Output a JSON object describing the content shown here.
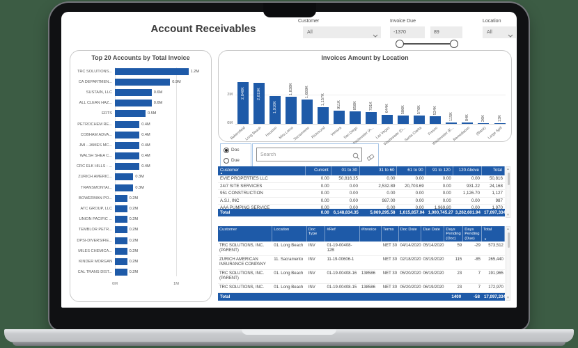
{
  "colors": {
    "page_background": "#3C5C44",
    "accent": "#1E5AA8",
    "slicer_border": "#A9C7E8"
  },
  "title": "Account Receivables",
  "filters": {
    "customer": {
      "label": "Customer",
      "value": "All"
    },
    "invoice_due": {
      "label": "Invoice Due",
      "min": "-1370",
      "max": "89"
    },
    "location": {
      "label": "Location",
      "value": "All"
    }
  },
  "slicer": {
    "options": [
      "Doc",
      "Due"
    ],
    "selected": "Doc"
  },
  "search": {
    "placeholder": "Search"
  },
  "chart_data": [
    {
      "type": "bar",
      "orientation": "horizontal",
      "title": "Top 20 Accounts by Total Invoice",
      "categories": [
        "TRC SOLUTIONS...",
        "CA DEPARTMEN...",
        "SUSTAIN, LLC",
        "ALL CLEAN HAZ...",
        "ERTS",
        "PETROCHEM RE...",
        "COBHAM ADVA...",
        "JMI - JAMES MC...",
        "WALSH SHEA C...",
        "CRC ELK HILLS - ...",
        "ZURICH AMERIC...",
        "TRANSMONTAI...",
        "BOWERMAN PO...",
        "ATC GROUP, LLC",
        "UNION PACIFIC ...",
        "TEMBLOR PETR...",
        "DPSI-DIVERSIFIE...",
        "MILES CHEMICA...",
        "KINDER MORGAN",
        "CAL TRANS DIST..."
      ],
      "values_m": [
        1.2,
        0.9,
        0.6,
        0.6,
        0.5,
        0.4,
        0.4,
        0.4,
        0.4,
        0.4,
        0.3,
        0.3,
        0.2,
        0.2,
        0.2,
        0.2,
        0.2,
        0.2,
        0.2,
        0.2
      ],
      "value_labels": [
        "1.2M",
        "0.9M",
        "0.6M",
        "0.6M",
        "0.5M",
        "0.4M",
        "0.4M",
        "0.4M",
        "0.4M",
        "0.4M",
        "0.3M",
        "0.3M",
        "0.2M",
        "0.2M",
        "0.2M",
        "0.2M",
        "0.2M",
        "0.2M",
        "0.2M",
        "0.2M"
      ],
      "xlabel": "",
      "ylabel": "",
      "x_ticks": [
        "0M",
        "1M"
      ],
      "xlim_m": [
        0,
        1.3
      ],
      "grid": true
    },
    {
      "type": "bar",
      "orientation": "vertical",
      "title": "Invoices Amount by Location",
      "categories": [
        "Bakersfield",
        "Long Beach",
        "Houston",
        "Mira Loma",
        "Sacramento",
        "Richmond",
        "Ventura",
        "San Diego",
        "Wastewater (A...",
        "Las Vegas",
        "Wastewater (O...",
        "Santa Clarita",
        "Fresno",
        "Wastewater (E...",
        "Remediation",
        "(Blank)",
        "Large Spill"
      ],
      "values_k": [
        2848,
        2819,
        1910,
        1838,
        1689,
        1157,
        911,
        858,
        791,
        644,
        586,
        576,
        524,
        115,
        84,
        26,
        13
      ],
      "value_labels": [
        "2,848K",
        "2,819K",
        "1,910K",
        "1,838K",
        "1,689K",
        "1,157K",
        "911K",
        "858K",
        "791K",
        "644K",
        "586K",
        "576K",
        "524K",
        "115K",
        "84K",
        "26K",
        "13K"
      ],
      "xlabel": "",
      "ylabel": "",
      "y_ticks": [
        "2M",
        "0M"
      ],
      "ylim_k": [
        0,
        3000
      ],
      "grid": true
    }
  ],
  "aging_table": {
    "sort_indicator": "▲",
    "columns": [
      "Customer",
      "Current",
      "01 to 30",
      "31 to 60",
      "61 to 90",
      "91 to 120",
      "120 Above",
      "Total"
    ],
    "rows": [
      [
        "EVIE PROPERTIES LLC",
        "0.00",
        "50,816.35",
        "0.00",
        "0.00",
        "0.00",
        "0.00",
        "50,816"
      ],
      [
        "24/7 SITE SERVICES",
        "0.00",
        "0.00",
        "2,532.89",
        "20,703.69",
        "0.00",
        "931.22",
        "24,168"
      ],
      [
        "951 CONSTRUCTION",
        "0.00",
        "0.00",
        "0.00",
        "0.00",
        "0.00",
        "1,126.70",
        "1,127"
      ],
      [
        "A.S.I, INC",
        "0.00",
        "0.00",
        "987.00",
        "0.00",
        "0.00",
        "0.00",
        "987"
      ],
      [
        "AAA PUMPING SERVICE",
        "0.00",
        "0.00",
        "0.00",
        "0.00",
        "1,969.80",
        "0.00",
        "1,970"
      ]
    ],
    "total": [
      "Total",
      "0.00",
      "6,148,834.35",
      "5,069,295.58",
      "1,615,857.04",
      "1,000,745.27",
      "3,262,601.94",
      "17,097,334"
    ]
  },
  "detail_table": {
    "sort_indicator": "▼",
    "columns": [
      "Customer",
      "Location",
      "Doc Type",
      "#Ref",
      "#Invoice",
      "Terms",
      "Doc Date",
      "Due Date",
      "Days Pending (Doc)",
      "Days Pending (Due)",
      "Total"
    ],
    "rows": [
      [
        "TRC SOLUTIONS, INC. (PARENT)",
        "01. Long Beach",
        "INV",
        "01-19-00408-12B",
        "",
        "NET 30",
        "04/14/2020",
        "05/14/2020",
        "59",
        "-29",
        "573,512"
      ],
      [
        "ZURICH AMERICAN INSURANCE COMPANY",
        "11. Sacramento",
        "INV",
        "11-19-00606-1",
        "",
        "NET 30",
        "02/18/2020",
        "03/19/2020",
        "115",
        "-85",
        "265,440"
      ],
      [
        "TRC SOLUTIONS, INC. (PARENT)",
        "01. Long Beach",
        "INV",
        "01-19-00408-16",
        "138586",
        "NET 30",
        "05/20/2020",
        "06/19/2020",
        "23",
        "7",
        "191,965"
      ],
      [
        "TRC SOLUTIONS, INC.",
        "01. Long Beach",
        "INV",
        "01-19-00408-15",
        "138586",
        "NET 30",
        "05/20/2020",
        "06/19/2020",
        "23",
        "7",
        "172,970"
      ]
    ],
    "total": {
      "label": "Total",
      "days_doc": "1400",
      "days_due": "-58",
      "total": "17,097,334"
    }
  }
}
